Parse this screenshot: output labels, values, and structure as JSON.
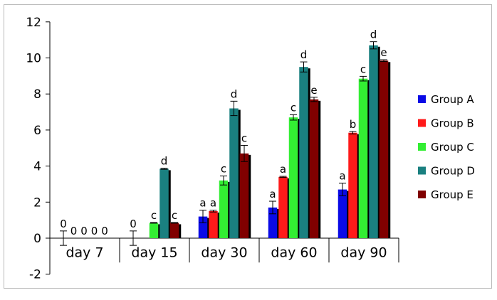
{
  "chart_data": {
    "type": "bar",
    "categories": [
      "day 7",
      "day 15",
      "day 30",
      "day 60",
      "day 90"
    ],
    "ylim": [
      -2,
      12
    ],
    "yticks": [
      -2,
      0,
      2,
      4,
      6,
      8,
      10,
      12
    ],
    "grid": false,
    "legend_position": "right",
    "series": [
      {
        "name": "Group A",
        "color": "#0a0ae6",
        "values": [
          0,
          0,
          1.2,
          1.7,
          2.7
        ],
        "errors": [
          0.4,
          0.4,
          0.35,
          0.35,
          0.35
        ],
        "labels": [
          "0",
          "0",
          "a",
          "a",
          "a"
        ]
      },
      {
        "name": "Group B",
        "color": "#ff1a1a",
        "values": [
          0,
          0,
          1.5,
          3.4,
          5.85
        ],
        "errors": [
          0,
          0,
          0.05,
          0.03,
          0.07
        ],
        "labels": [
          "0",
          "",
          "a",
          "a",
          "b"
        ]
      },
      {
        "name": "Group C",
        "color": "#33ee33",
        "values": [
          0,
          0.85,
          3.2,
          6.7,
          8.85
        ],
        "errors": [
          0,
          0.02,
          0.25,
          0.15,
          0.13
        ],
        "labels": [
          "0",
          "c",
          "c",
          "c",
          "c"
        ]
      },
      {
        "name": "Group D",
        "color": "#1a8080",
        "values": [
          0,
          3.85,
          7.2,
          9.5,
          10.7
        ],
        "errors": [
          0,
          0.03,
          0.4,
          0.28,
          0.2
        ],
        "labels": [
          "0",
          "d",
          "d",
          "d",
          "d"
        ]
      },
      {
        "name": "Group E",
        "color": "#800000",
        "values": [
          0,
          0.85,
          4.7,
          7.7,
          9.85
        ],
        "errors": [
          0,
          0.02,
          0.45,
          0.12,
          0.05
        ],
        "labels": [
          "0",
          "c",
          "c",
          "e",
          "e"
        ]
      }
    ]
  }
}
